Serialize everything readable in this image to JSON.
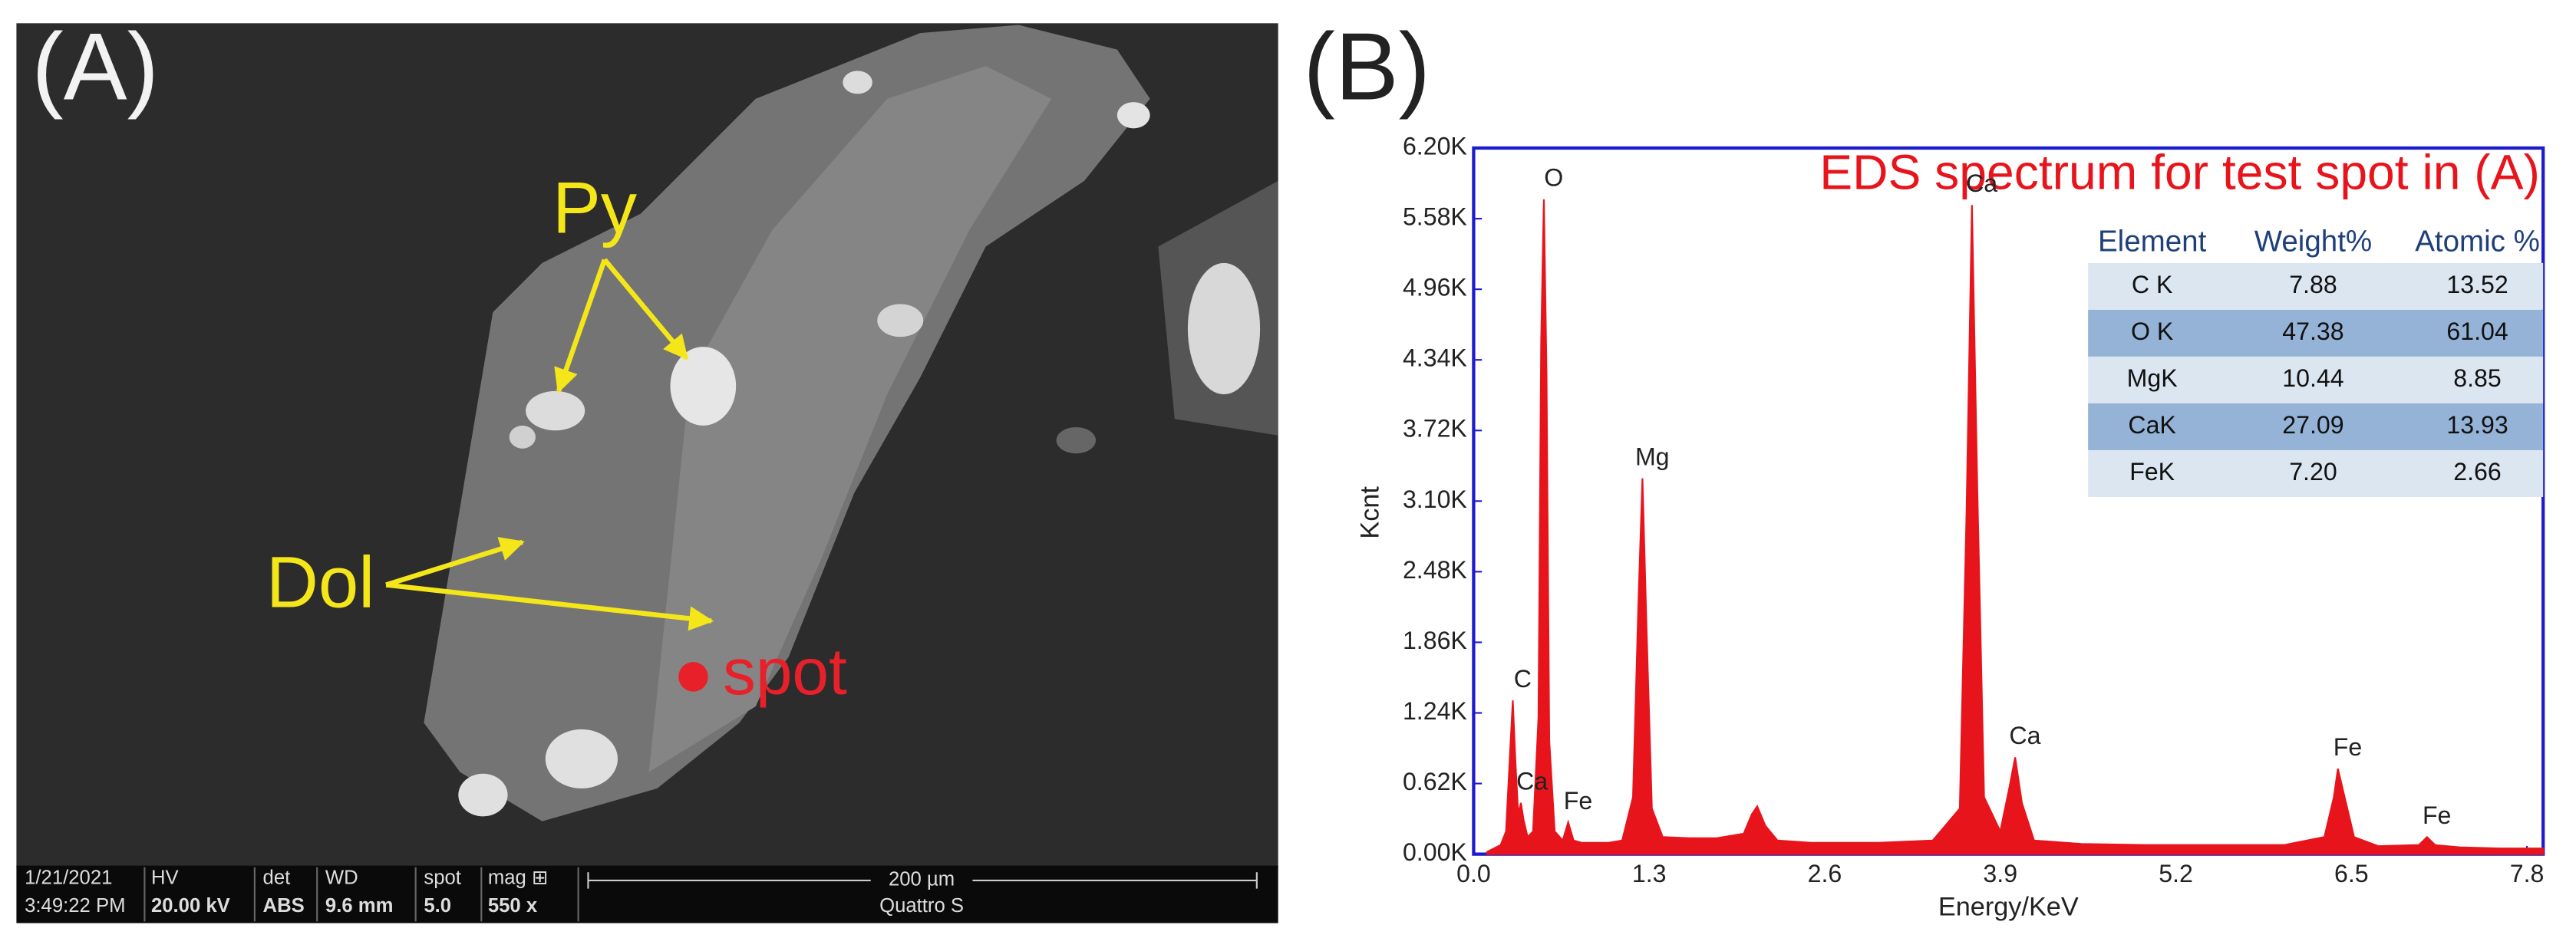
{
  "panel_a": {
    "label": "(A)",
    "annotations": {
      "py": "Py",
      "dol": "Dol",
      "spot": "spot"
    },
    "info_bar": {
      "date": "1/21/2021",
      "time": "3:49:22 PM",
      "hv_label": "HV",
      "hv": "20.00 kV",
      "det_label": "det",
      "det": "ABS",
      "wd_label": "WD",
      "wd": "9.6 mm",
      "spot_label": "spot",
      "spot": "5.0",
      "mag_label": "mag ⊞",
      "mag": "550 x",
      "scale": "200 µm",
      "instrument": "Quattro S"
    }
  },
  "chart_data": {
    "type": "area",
    "panel_label": "(B)",
    "title": "EDS spectrum for test spot in (A)",
    "x_label": "Energy/KeV",
    "y_label": "Kcnt",
    "x": [
      0.1,
      0.15,
      0.2,
      0.24,
      0.27,
      0.29,
      0.31,
      0.33,
      0.35,
      0.37,
      0.4,
      0.44,
      0.48,
      0.5,
      0.52,
      0.54,
      0.56,
      0.6,
      0.66,
      0.7,
      0.74,
      0.8,
      0.9,
      1.0,
      1.1,
      1.18,
      1.22,
      1.25,
      1.28,
      1.32,
      1.4,
      1.6,
      1.8,
      2.0,
      2.06,
      2.1,
      2.16,
      2.25,
      2.5,
      3.0,
      3.4,
      3.6,
      3.65,
      3.69,
      3.73,
      3.78,
      3.9,
      3.97,
      4.01,
      4.06,
      4.15,
      4.5,
      5.0,
      5.5,
      6.0,
      6.3,
      6.37,
      6.4,
      6.44,
      6.52,
      6.7,
      7.0,
      7.06,
      7.12,
      7.3,
      7.6,
      7.92
    ],
    "series": [
      {
        "color": "#e8141c",
        "values": [
          0.02,
          0.05,
          0.08,
          0.2,
          0.9,
          1.35,
          0.8,
          0.35,
          0.45,
          0.3,
          0.15,
          0.2,
          1.2,
          4.5,
          5.75,
          4.2,
          1.0,
          0.2,
          0.12,
          0.28,
          0.12,
          0.1,
          0.1,
          0.1,
          0.12,
          0.5,
          2.2,
          3.3,
          2.0,
          0.4,
          0.15,
          0.14,
          0.14,
          0.18,
          0.35,
          0.42,
          0.25,
          0.12,
          0.1,
          0.1,
          0.12,
          0.4,
          3.0,
          5.7,
          3.2,
          0.5,
          0.2,
          0.6,
          0.85,
          0.45,
          0.12,
          0.09,
          0.08,
          0.08,
          0.08,
          0.15,
          0.5,
          0.75,
          0.55,
          0.15,
          0.07,
          0.08,
          0.15,
          0.08,
          0.06,
          0.05,
          0.05
        ]
      }
    ],
    "xlim": [
      0,
      7.92
    ],
    "ylim": [
      0,
      6.2
    ],
    "xticks": [
      {
        "value": 0,
        "label": "0.0"
      },
      1.3,
      2.6,
      3.9,
      5.2,
      6.5,
      7.8
    ],
    "yticks": [
      {
        "value": 0,
        "label": "0.00K"
      },
      {
        "value": 0.62,
        "label": "0.62K"
      },
      {
        "value": 1.24,
        "label": "1.24K"
      },
      {
        "value": 1.86,
        "label": "1.86K"
      },
      {
        "value": 2.48,
        "label": "2.48K"
      },
      {
        "value": 3.1,
        "label": "3.10K"
      },
      {
        "value": 3.72,
        "label": "3.72K"
      },
      {
        "value": 4.34,
        "label": "4.34K"
      },
      {
        "value": 4.96,
        "label": "4.96K"
      },
      {
        "value": 5.58,
        "label": "5.58K"
      },
      {
        "value": 6.2,
        "label": "6.20K"
      }
    ],
    "annotations": [
      {
        "text": "C",
        "x": 0.29,
        "y": 1.35
      },
      {
        "text": "Ca",
        "x": 0.36,
        "y": 0.45
      },
      {
        "text": "O",
        "x": 0.52,
        "y": 5.75
      },
      {
        "text": "Fe",
        "x": 0.7,
        "y": 0.28
      },
      {
        "text": "Mg",
        "x": 1.25,
        "y": 3.3
      },
      {
        "text": "Ca",
        "x": 3.69,
        "y": 5.7
      },
      {
        "text": "Ca",
        "x": 4.01,
        "y": 0.85
      },
      {
        "text": "Fe",
        "x": 6.4,
        "y": 0.75
      },
      {
        "text": "Fe",
        "x": 7.06,
        "y": 0.15
      }
    ],
    "table": {
      "columns": [
        "Element",
        "Weight%",
        "Atomic %"
      ],
      "rows": [
        [
          "C K",
          "7.88",
          "13.52"
        ],
        [
          "O K",
          "47.38",
          "61.04"
        ],
        [
          "MgK",
          "10.44",
          "8.85"
        ],
        [
          "CaK",
          "27.09",
          "13.93"
        ],
        [
          "FeK",
          "7.20",
          "2.66"
        ]
      ]
    }
  }
}
